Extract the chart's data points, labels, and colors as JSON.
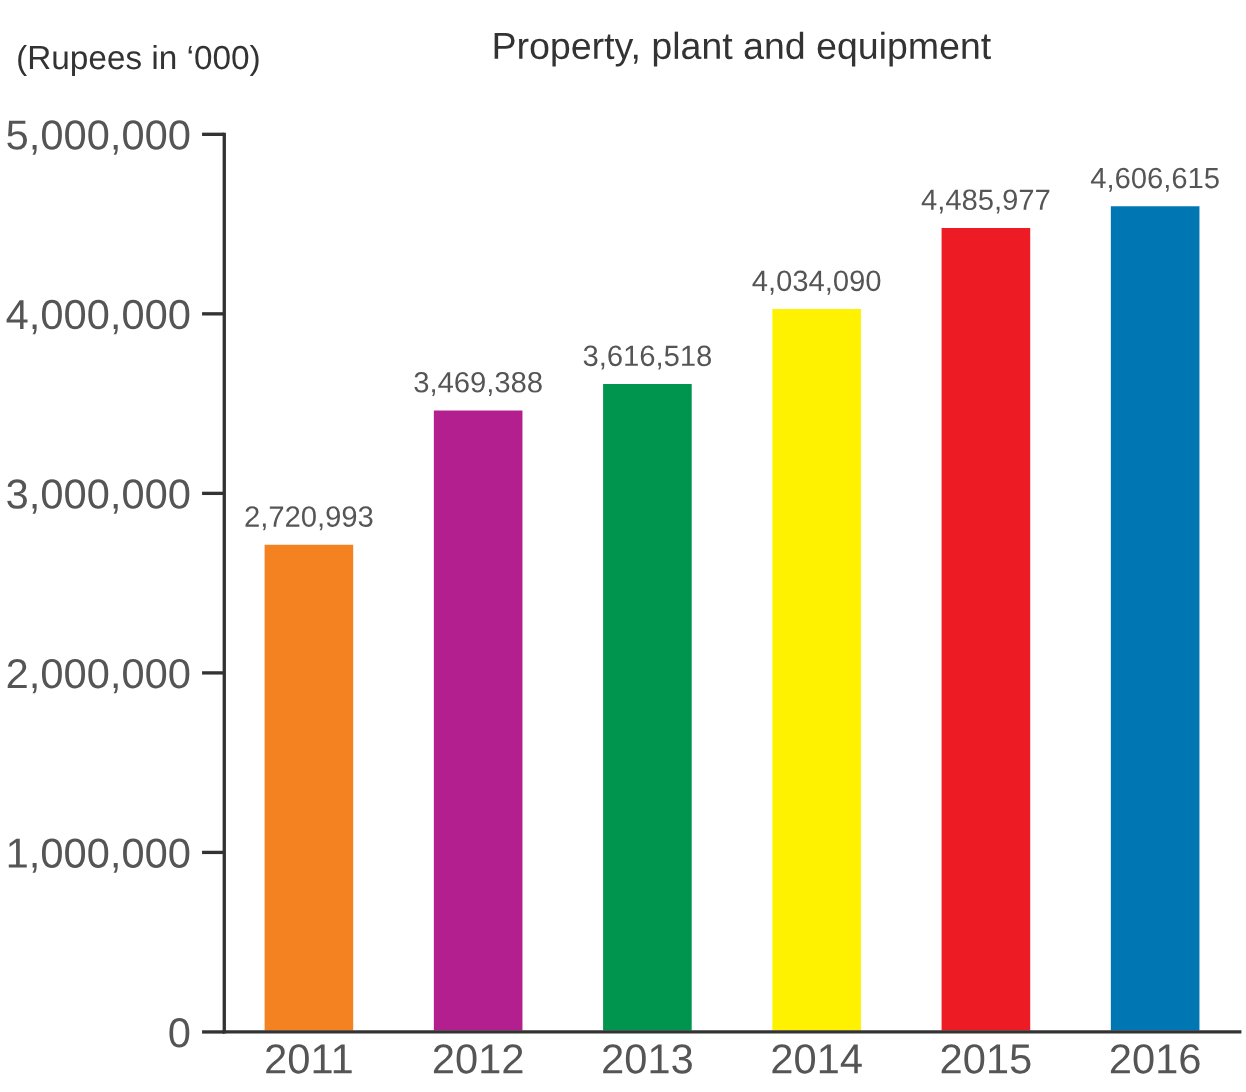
{
  "chart_data": {
    "type": "bar",
    "title": "Property, plant and equipment",
    "ylabel": "(Rupees in ‘000)",
    "categories": [
      "2011",
      "2012",
      "2013",
      "2014",
      "2015",
      "2016"
    ],
    "values": [
      2720993,
      3469388,
      3616518,
      4034090,
      4485977,
      4606615
    ],
    "colors": [
      "#f58220",
      "#b31f8f",
      "#00954f",
      "#fff200",
      "#ed1c24",
      "#0077b3"
    ],
    "value_labels": [
      "2,720,993",
      "3,469,388",
      "3,616,518",
      "4,034,090",
      "4,485,977",
      "4,606,615"
    ],
    "ylim": [
      0,
      5000000
    ],
    "yticks": [
      {
        "value": 0,
        "label": "0"
      },
      {
        "value": 1000000,
        "label": "1,000,000"
      },
      {
        "value": 2000000,
        "label": "2,000,000"
      },
      {
        "value": 3000000,
        "label": "3,000,000"
      },
      {
        "value": 4000000,
        "label": "4,000,000"
      },
      {
        "value": 5000000,
        "label": "5,000,000"
      }
    ],
    "grid": false,
    "legend": false
  }
}
